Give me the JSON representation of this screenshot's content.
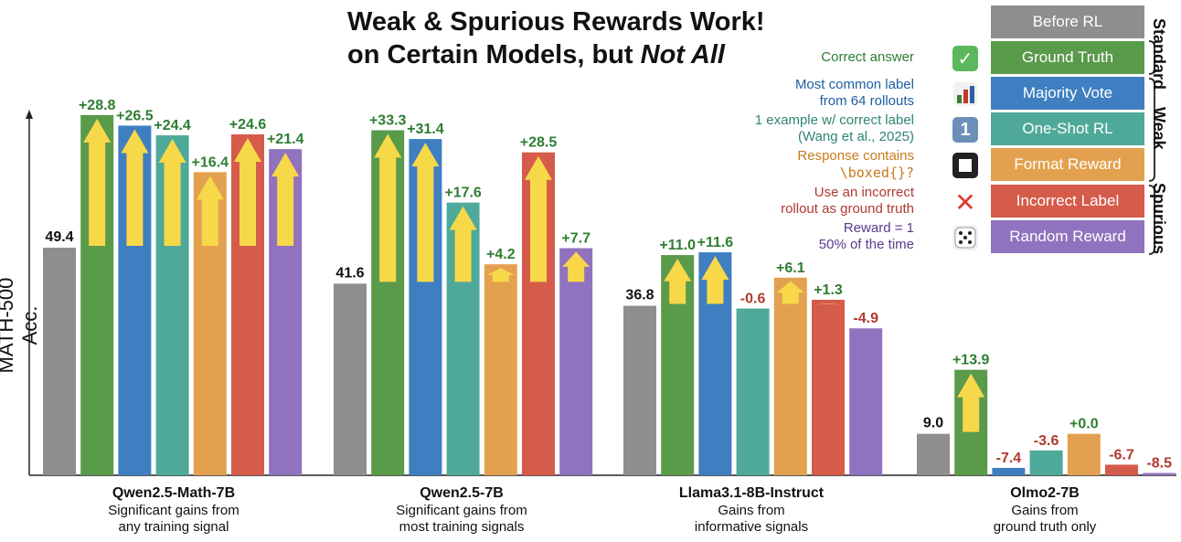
{
  "title": {
    "line1": "Weak & Spurious Rewards Work!",
    "line2_prefix": "on Certain Models, but ",
    "line2_emph": "Not All"
  },
  "colors": {
    "Before RL": "#8e8e8e",
    "Ground Truth": "#5a9a4b",
    "Majority Vote": "#3f7fc1",
    "One-Shot RL": "#4fa99a",
    "Format Reward": "#e3a14f",
    "Incorrect Label": "#d55b4a",
    "Random Reward": "#9172be",
    "arrow": "#f7d849",
    "positive_label": "#2e7d32",
    "negative_label": "#b03a2e"
  },
  "legend": {
    "items": [
      {
        "name": "Before RL",
        "desc": [],
        "icon": ""
      },
      {
        "name": "Ground Truth",
        "desc": [
          "Correct answer"
        ],
        "icon": "check-mark-icon",
        "desc_color": "#2e7d32"
      },
      {
        "name": "Majority Vote",
        "desc": [
          "Most common label",
          "from 64 rollouts"
        ],
        "icon": "bar-chart-icon",
        "desc_color": "#1f5fa0"
      },
      {
        "name": "One-Shot RL",
        "desc": [
          "1 example w/ correct label",
          "(Wang et al., 2025)"
        ],
        "icon": "number-one-icon",
        "desc_color": "#2e8577"
      },
      {
        "name": "Format Reward",
        "desc": [
          "Response contains",
          "\\boxed{}?"
        ],
        "icon": "square-icon",
        "desc_color": "#c97a1d"
      },
      {
        "name": "Incorrect Label",
        "desc": [
          "Use an incorrect",
          "rollout as ground truth"
        ],
        "icon": "cross-icon",
        "desc_color": "#b03a2e"
      },
      {
        "name": "Random Reward",
        "desc": [
          "Reward = 1",
          "50% of the time"
        ],
        "icon": "dice-icon",
        "desc_color": "#5b3a8c"
      }
    ],
    "groups": [
      "Standard",
      "Weak",
      "Spurious"
    ],
    "icon_glyphs": {
      "check": "✓",
      "one": "1",
      "cross": "✕"
    }
  },
  "chart_data": {
    "type": "bar",
    "ylabel": "MATH-500 Acc.",
    "ylim": [
      0,
      80
    ],
    "series_names": [
      "Before RL",
      "Ground Truth",
      "Majority Vote",
      "One-Shot RL",
      "Format Reward",
      "Incorrect Label",
      "Random Reward"
    ],
    "groups": [
      {
        "name": "Qwen2.5-Math-7B",
        "subtitle": [
          "Significant gains from",
          "any training signal"
        ],
        "baseline": 49.4,
        "baseline_label": "49.4",
        "deltas": [
          28.8,
          26.5,
          24.4,
          16.4,
          24.6,
          21.4
        ],
        "delta_labels": [
          "+28.8",
          "+26.5",
          "+24.4",
          "+16.4",
          "+24.6",
          "+21.4"
        ]
      },
      {
        "name": "Qwen2.5-7B",
        "subtitle": [
          "Significant gains from",
          "most training signals"
        ],
        "baseline": 41.6,
        "baseline_label": "41.6",
        "deltas": [
          33.3,
          31.4,
          17.6,
          4.2,
          28.5,
          7.7
        ],
        "delta_labels": [
          "+33.3",
          "+31.4",
          "+17.6",
          "+4.2",
          "+28.5",
          "+7.7"
        ]
      },
      {
        "name": "Llama3.1-8B-Instruct",
        "subtitle": [
          "Gains from",
          "informative signals"
        ],
        "baseline": 36.8,
        "baseline_label": "36.8",
        "deltas": [
          11.0,
          11.6,
          -0.6,
          6.1,
          1.3,
          -4.9
        ],
        "delta_labels": [
          "+11.0",
          "+11.6",
          "-0.6",
          "+6.1",
          "+1.3",
          "-4.9"
        ]
      },
      {
        "name": "Olmo2-7B",
        "subtitle": [
          "Gains from",
          "ground truth only"
        ],
        "baseline": 9.0,
        "baseline_label": "9.0",
        "deltas": [
          13.9,
          -7.4,
          -3.6,
          0.0,
          -6.7,
          -8.5
        ],
        "delta_labels": [
          "+13.9",
          "-7.4",
          "-3.6",
          "+0.0",
          "-6.7",
          "-8.5"
        ]
      }
    ]
  }
}
